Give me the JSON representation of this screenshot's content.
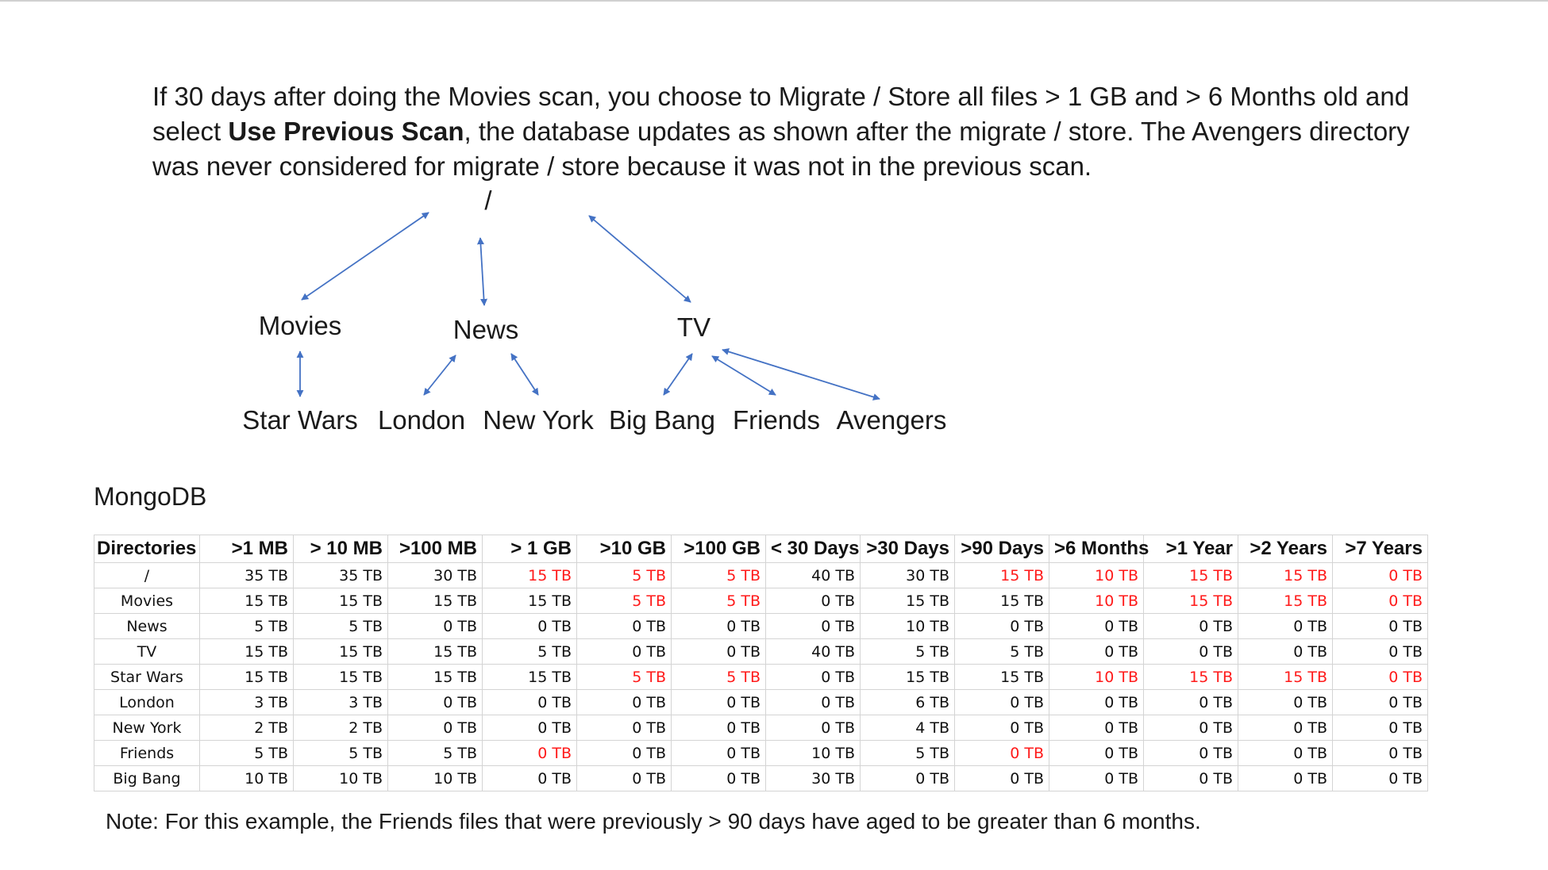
{
  "intro": {
    "part1": "If 30 days after doing the Movies scan, you choose to Migrate / Store all files > 1 GB and > 6 Months old and select ",
    "bold": "Use Previous Scan",
    "part2": ", the database updates as shown after the migrate / store. The Avengers directory was never considered for migrate / store because it was not in the previous scan."
  },
  "tree": {
    "root": "/",
    "movies": "Movies",
    "news": "News",
    "tv": "TV",
    "star_wars": "Star Wars",
    "london": "London",
    "new_york": "New York",
    "big_bang": "Big Bang",
    "friends": "Friends",
    "avengers": "Avengers",
    "arrow_color": "#4472c4"
  },
  "db_label": "MongoDB",
  "table": {
    "headers": [
      "Directories",
      ">1 MB",
      "> 10 MB",
      ">100 MB",
      "> 1 GB",
      ">10 GB",
      ">100 GB",
      "< 30 Days",
      ">30 Days",
      ">90 Days",
      ">6 Months",
      ">1 Year",
      ">2 Years",
      ">7 Years"
    ],
    "highlight_color": "#ff1a1a",
    "rows": [
      {
        "cells": [
          "/",
          "35 TB",
          "35 TB",
          "30 TB",
          "15 TB",
          "5 TB",
          "5 TB",
          "40 TB",
          "30 TB",
          "15 TB",
          "10 TB",
          "15 TB",
          "15 TB",
          "0 TB"
        ],
        "red": [
          4,
          5,
          6,
          9,
          10,
          11,
          12,
          13
        ]
      },
      {
        "cells": [
          "Movies",
          "15 TB",
          "15 TB",
          "15 TB",
          "15 TB",
          "5 TB",
          "5 TB",
          "0 TB",
          "15 TB",
          "15 TB",
          "10 TB",
          "15 TB",
          "15 TB",
          "0 TB"
        ],
        "red": [
          5,
          6,
          10,
          11,
          12,
          13
        ]
      },
      {
        "cells": [
          "News",
          "5 TB",
          "5 TB",
          "0 TB",
          "0 TB",
          "0 TB",
          "0 TB",
          "0 TB",
          "10 TB",
          "0 TB",
          "0 TB",
          "0 TB",
          "0 TB",
          "0 TB"
        ],
        "red": []
      },
      {
        "cells": [
          "TV",
          "15 TB",
          "15 TB",
          "15 TB",
          "5 TB",
          "0 TB",
          "0 TB",
          "40 TB",
          "5 TB",
          "5 TB",
          "0 TB",
          "0 TB",
          "0 TB",
          "0 TB"
        ],
        "red": []
      },
      {
        "cells": [
          "Star Wars",
          "15 TB",
          "15 TB",
          "15 TB",
          "15 TB",
          "5 TB",
          "5 TB",
          "0 TB",
          "15 TB",
          "15 TB",
          "10 TB",
          "15 TB",
          "15 TB",
          "0 TB"
        ],
        "red": [
          5,
          6,
          10,
          11,
          12,
          13
        ]
      },
      {
        "cells": [
          "London",
          "3 TB",
          "3 TB",
          "0 TB",
          "0 TB",
          "0 TB",
          "0 TB",
          "0 TB",
          "6 TB",
          "0 TB",
          "0 TB",
          "0 TB",
          "0 TB",
          "0 TB"
        ],
        "red": []
      },
      {
        "cells": [
          "New York",
          "2 TB",
          "2 TB",
          "0 TB",
          "0 TB",
          "0 TB",
          "0 TB",
          "0 TB",
          "4 TB",
          "0 TB",
          "0 TB",
          "0 TB",
          "0 TB",
          "0 TB"
        ],
        "red": []
      },
      {
        "cells": [
          "Friends",
          "5 TB",
          "5 TB",
          "5 TB",
          "0 TB",
          "0 TB",
          "0 TB",
          "10 TB",
          "5 TB",
          "0 TB",
          "0 TB",
          "0 TB",
          "0 TB",
          "0 TB"
        ],
        "red": [
          4,
          9
        ]
      },
      {
        "cells": [
          "Big Bang",
          "10 TB",
          "10 TB",
          "10 TB",
          "0 TB",
          "0 TB",
          "0 TB",
          "30 TB",
          "0 TB",
          "0 TB",
          "0 TB",
          "0 TB",
          "0 TB",
          "0 TB"
        ],
        "red": []
      }
    ]
  },
  "note": "Note: For this example, the Friends files that were previously > 90 days have aged to be greater than 6 months."
}
